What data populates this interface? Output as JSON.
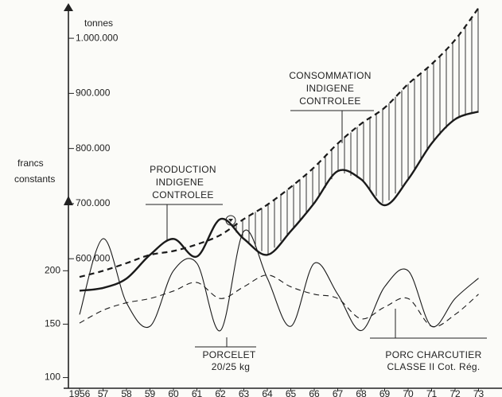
{
  "chart_data": {
    "type": "line",
    "y_axis_label": "tonnes",
    "y2_axis_label": [
      "francs",
      "constants"
    ],
    "categories": [
      "1956",
      "57",
      "58",
      "59",
      "60",
      "61",
      "62",
      "63",
      "64",
      "65",
      "66",
      "67",
      "68",
      "69",
      "70",
      "71",
      "72",
      "73"
    ],
    "ylim": [
      365000,
      1055000
    ],
    "yticks": [
      {
        "value": 600000,
        "label": "600.000"
      },
      {
        "value": 700000,
        "label": "700.000"
      },
      {
        "value": 800000,
        "label": "800.000"
      },
      {
        "value": 900000,
        "label": "900.000"
      },
      {
        "value": 1000000,
        "label": "1.000.000"
      }
    ],
    "y2lim": [
      90,
      446
    ],
    "y2ticks": [
      100,
      150,
      200
    ],
    "series": [
      {
        "name": [
          "PRODUCTION",
          "INDIGENE",
          "CONTROLEE"
        ],
        "color": "#1a1a1a",
        "style": "solid",
        "width": 2.4,
        "values": [
          542000,
          547000,
          564000,
          607000,
          636000,
          604000,
          672000,
          636000,
          607000,
          650000,
          701000,
          759000,
          744000,
          697000,
          744000,
          809000,
          853000,
          867000
        ]
      },
      {
        "name": [
          "CONSOMMATION",
          "INDIGENE",
          "CONTROLEE"
        ],
        "color": "#1a1a1a",
        "style": "dashed",
        "width": 2.2,
        "values": [
          567000,
          578000,
          592000,
          607000,
          614000,
          626000,
          643000,
          672000,
          698000,
          730000,
          766000,
          809000,
          845000,
          874000,
          917000,
          953000,
          997000,
          1055000
        ]
      },
      {
        "name": [
          "PORCELET",
          "20/25 kg"
        ],
        "color": "#1a1a1a",
        "style": "solid",
        "width": 1.1,
        "axis": "y2",
        "values": [
          159,
          230,
          170,
          148,
          200,
          207,
          144,
          237,
          193,
          148,
          207,
          178,
          144,
          185,
          200,
          148,
          174,
          193
        ]
      },
      {
        "name": [
          "PORC CHARCUTIER",
          "CLASSE II Cot. Rég."
        ],
        "color": "#1a1a1a",
        "style": "dashed",
        "width": 1.1,
        "axis": "y2",
        "values": [
          151,
          163,
          170,
          174,
          181,
          189,
          174,
          185,
          196,
          185,
          178,
          174,
          155,
          166,
          174,
          148,
          159,
          178
        ]
      }
    ]
  }
}
